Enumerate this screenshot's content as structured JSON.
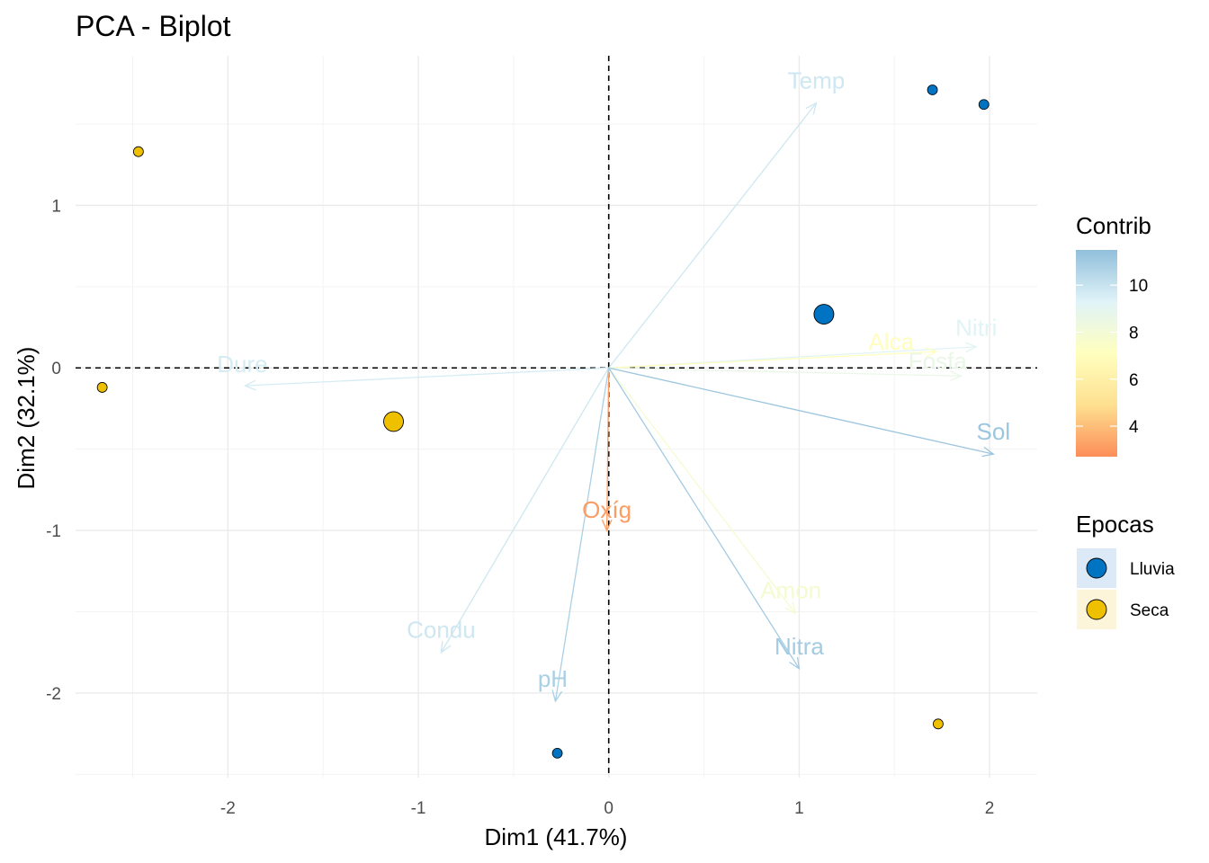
{
  "chart_data": {
    "type": "scatter",
    "subtype": "pca-biplot",
    "title": "PCA - Biplot",
    "xlabel": "Dim1 (41.7%)",
    "ylabel": "Dim2 (32.1%)",
    "xlim": [
      -2.8,
      2.25
    ],
    "ylim": [
      -2.52,
      1.92
    ],
    "xticks": [
      -2,
      -1,
      0,
      1,
      2
    ],
    "yticks": [
      -2,
      -1,
      0,
      1
    ],
    "grid": true,
    "reference_lines": {
      "x": 0,
      "y": 0,
      "style": "dashed"
    },
    "individuals": [
      {
        "group": "Lluvia",
        "x": 1.7,
        "y": 1.71
      },
      {
        "group": "Lluvia",
        "x": 1.97,
        "y": 1.62
      },
      {
        "group": "Lluvia",
        "x": -0.27,
        "y": -2.37
      },
      {
        "group": "Seca",
        "x": -2.47,
        "y": 1.33
      },
      {
        "group": "Seca",
        "x": -2.66,
        "y": -0.12
      },
      {
        "group": "Seca",
        "x": 1.73,
        "y": -2.19
      }
    ],
    "centroids": [
      {
        "group": "Lluvia",
        "x": 1.13,
        "y": 0.33
      },
      {
        "group": "Seca",
        "x": -1.13,
        "y": -0.33
      }
    ],
    "variables": [
      {
        "name": "Temp",
        "x": 1.09,
        "y": 1.63,
        "contrib": 9.8
      },
      {
        "name": "Nitri",
        "x": 1.93,
        "y": 0.13,
        "contrib": 9.2
      },
      {
        "name": "Alca",
        "x": 1.72,
        "y": 0.1,
        "contrib": 7.0
      },
      {
        "name": "Fosfa",
        "x": 1.85,
        "y": -0.05,
        "contrib": 8.6
      },
      {
        "name": "Dure",
        "x": -1.91,
        "y": -0.11,
        "contrib": 9.6
      },
      {
        "name": "Sol",
        "x": 2.02,
        "y": -0.53,
        "contrib": 11.2
      },
      {
        "name": "Oxíg",
        "x": -0.01,
        "y": -1.0,
        "contrib": 3.1
      },
      {
        "name": "Amon",
        "x": 0.98,
        "y": -1.51,
        "contrib": 7.8
      },
      {
        "name": "Nitra",
        "x": 1.0,
        "y": -1.85,
        "contrib": 11.0
      },
      {
        "name": "Condu",
        "x": -0.88,
        "y": -1.75,
        "contrib": 9.8
      },
      {
        "name": "pH",
        "x": -0.28,
        "y": -2.05,
        "contrib": 10.8
      }
    ],
    "legends": {
      "contrib": {
        "title": "Contrib",
        "ticks": [
          4,
          6,
          8,
          10
        ],
        "range": [
          2.7,
          11.5
        ]
      },
      "groups": {
        "title": "Epocas",
        "items": [
          {
            "label": "Lluvia",
            "color": "#0073C2"
          },
          {
            "label": "Seca",
            "color": "#EFC000"
          }
        ]
      },
      "placement": "right"
    }
  },
  "colors": {
    "lluvia": "#0073C2",
    "seca": "#EFC000",
    "grid": "#ebebeb",
    "gradient": [
      "#FC8D59",
      "#FEE090",
      "#FFFFBF",
      "#E0F3F8",
      "#91BFDB"
    ]
  }
}
